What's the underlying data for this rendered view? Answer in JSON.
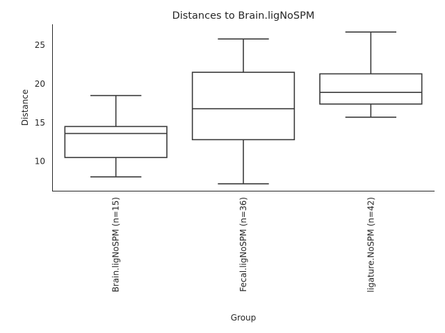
{
  "chart_data": {
    "type": "box",
    "title": "Distances to Brain.ligNoSPM",
    "xlabel": "Group",
    "ylabel": "Distance",
    "ylim": [
      6.2,
      27.7
    ],
    "yticks": [
      10,
      15,
      20,
      25
    ],
    "grid": false,
    "categories": [
      "Brain.ligNoSPM (n=15)",
      "Fecal.ligNoSPM (n=36)",
      "ligature.NoSPM (n=42)"
    ],
    "boxes": [
      {
        "whisker_low": 8.0,
        "q1": 10.5,
        "median": 13.6,
        "q3": 14.5,
        "whisker_high": 18.5
      },
      {
        "whisker_low": 7.1,
        "q1": 12.8,
        "median": 16.8,
        "q3": 21.5,
        "whisker_high": 25.8
      },
      {
        "whisker_low": 15.7,
        "q1": 17.4,
        "median": 18.9,
        "q3": 21.3,
        "whisker_high": 26.7
      }
    ]
  }
}
